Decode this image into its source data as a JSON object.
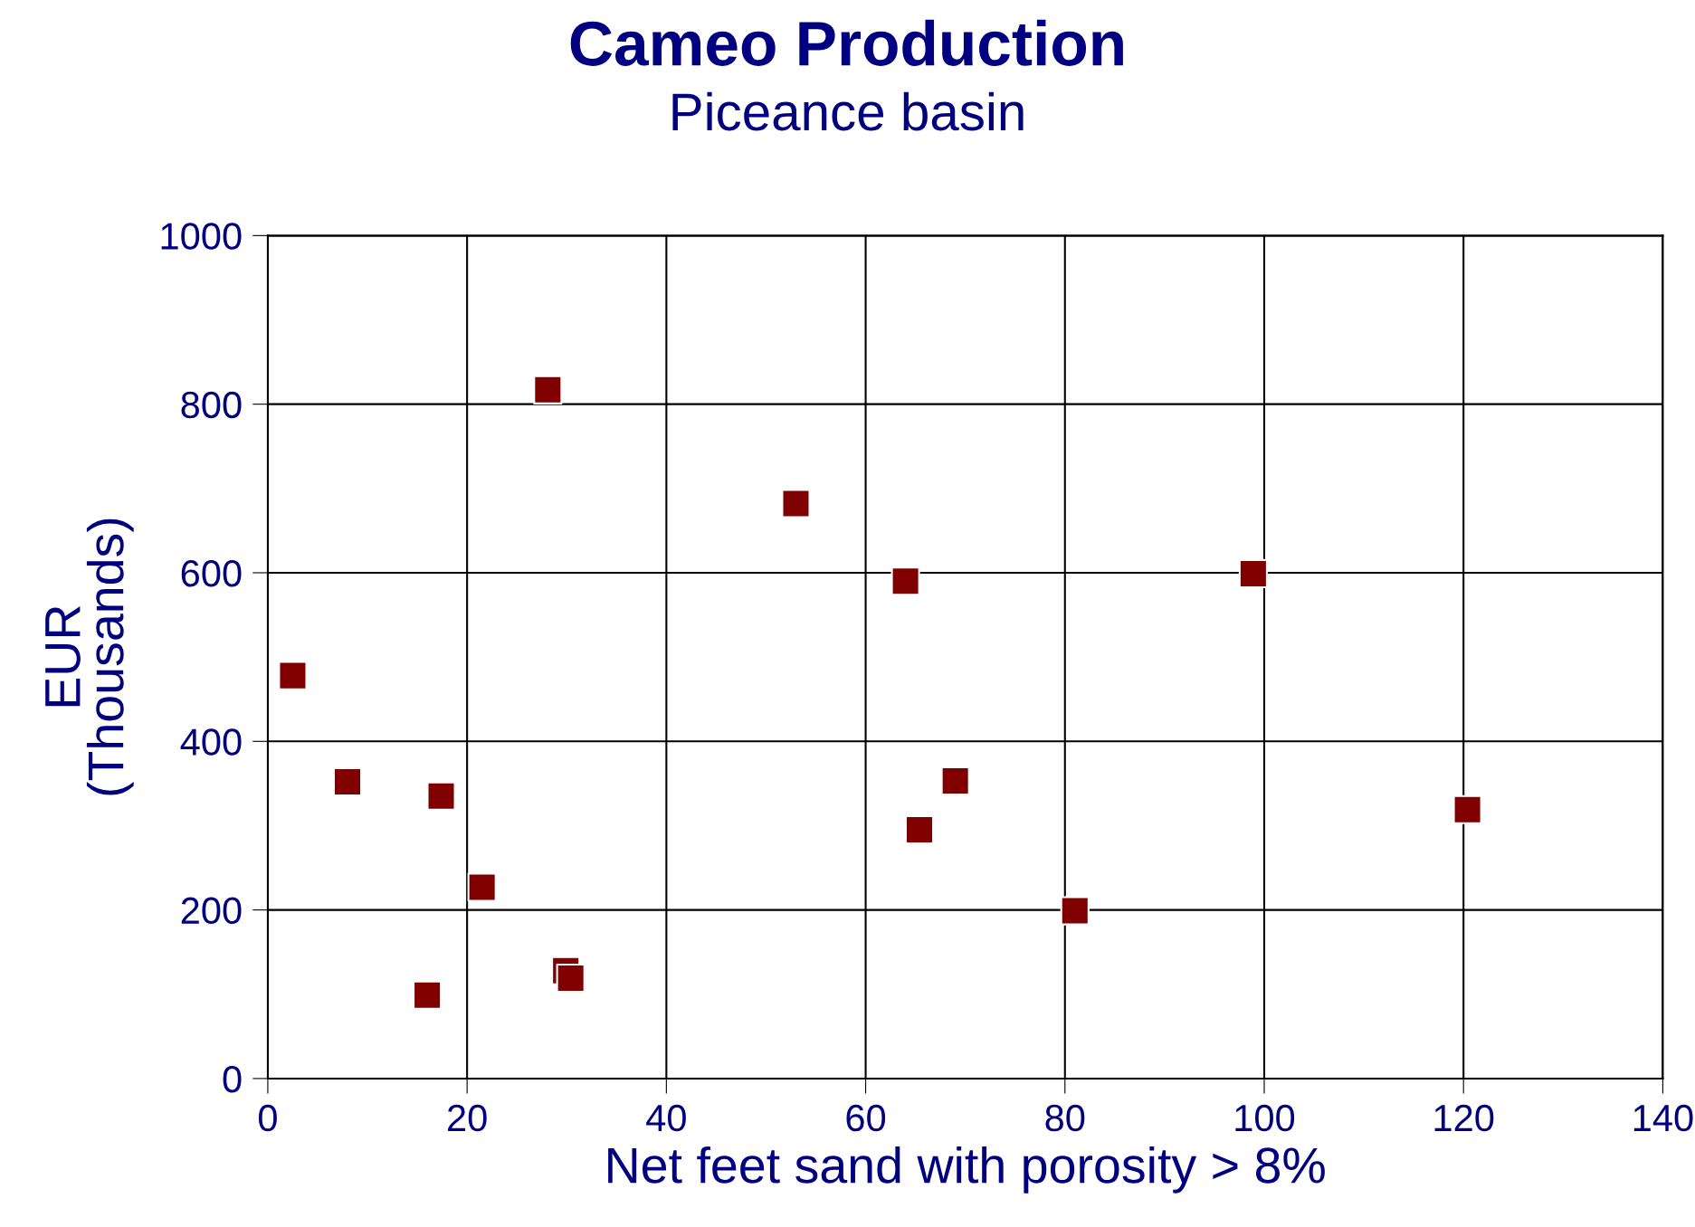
{
  "chart_data": {
    "type": "scatter",
    "title": "Cameo Production",
    "subtitle": "Piceance basin",
    "xlabel": "Net feet sand with porosity > 8%",
    "ylabel": "EUR\n(Thousands)",
    "x": [
      2.5,
      8.0,
      17.4,
      16.0,
      21.5,
      28.1,
      29.9,
      30.4,
      53.0,
      64.0,
      65.4,
      69.0,
      81.0,
      98.9,
      120.4
    ],
    "series": [
      {
        "color": "#800000",
        "values": [
          478,
          352,
          335,
          99,
          227,
          817,
          128,
          119,
          682,
          590,
          295,
          353,
          199,
          599,
          319
        ]
      }
    ],
    "xlim": [
      0,
      140
    ],
    "xticks": [
      0,
      20,
      40,
      60,
      80,
      100,
      120,
      140
    ],
    "ylim": [
      0,
      1000
    ],
    "yticks": [
      0,
      200,
      400,
      600,
      800,
      1000
    ],
    "grid": true,
    "marker": "square",
    "legend": false
  }
}
